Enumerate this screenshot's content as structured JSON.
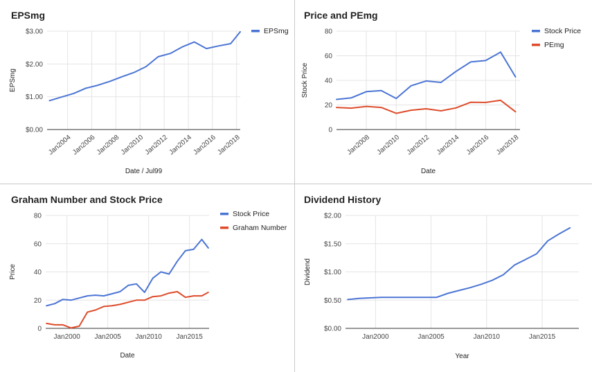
{
  "colors": {
    "blue": "#4a74d4",
    "red": "#dd4b2a",
    "grid": "#e4e4e4"
  },
  "chart_data": [
    {
      "type": "line",
      "title": "EPSmg",
      "xlabel": "Date / Jul99",
      "ylabel": "EPSmg",
      "xaxis": "date",
      "xlim": [
        2002.3,
        2018.3
      ],
      "ylim": [
        0,
        3
      ],
      "yticks": [
        0,
        1,
        2,
        3
      ],
      "yticklabels": [
        "$0.00",
        "$1.00",
        "$2.00",
        "$3.00"
      ],
      "xticks": [
        2004,
        2006,
        2008,
        2010,
        2012,
        2014,
        2016,
        2018
      ],
      "xticklabels": [
        "Jan2004",
        "Jan2006",
        "Jan2008",
        "Jan2010",
        "Jan2012",
        "Jan2014",
        "Jan2016",
        "Jan2018"
      ],
      "xticks_rotated": true,
      "grid": true,
      "legend": "top-right",
      "series": [
        {
          "name": "EPSmg",
          "color": "#4a74d4",
          "x": [
            2002.5,
            2003.5,
            2004.5,
            2005.5,
            2006.5,
            2007.5,
            2008.5,
            2009.5,
            2010.5,
            2011.5,
            2012.5,
            2013.5,
            2014.5,
            2015.5,
            2016.5,
            2017.5,
            2018.3
          ],
          "y": [
            0.88,
            0.99,
            1.1,
            1.26,
            1.35,
            1.47,
            1.61,
            1.74,
            1.92,
            2.22,
            2.32,
            2.52,
            2.67,
            2.47,
            2.55,
            2.62,
            2.98
          ]
        }
      ]
    },
    {
      "type": "line",
      "title": "Price and PEmg",
      "xlabel": "Date",
      "ylabel": "Stock Price",
      "xaxis": "date",
      "xlim": [
        2006.0,
        2018.3
      ],
      "ylim": [
        0,
        80
      ],
      "yticks": [
        0,
        20,
        40,
        60,
        80
      ],
      "yticklabels": [
        "0",
        "20",
        "40",
        "60",
        "80"
      ],
      "xticks": [
        2008,
        2010,
        2012,
        2014,
        2016,
        2018
      ],
      "xticklabels": [
        "Jan2008",
        "Jan2010",
        "Jan2012",
        "Jan2014",
        "Jan2016",
        "Jan2018"
      ],
      "xticks_rotated": true,
      "grid": true,
      "legend": "top-right",
      "series": [
        {
          "name": "Stock Price",
          "color": "#4a74d4",
          "x": [
            2006.0,
            2007.0,
            2008.0,
            2009.0,
            2010.0,
            2011.0,
            2012.0,
            2013.0,
            2014.0,
            2015.0,
            2016.0,
            2017.0,
            2018.0
          ],
          "y": [
            24.5,
            25.8,
            30.8,
            31.7,
            25.3,
            35.6,
            39.5,
            38.3,
            47.2,
            55.0,
            56.1,
            63.0,
            42.8
          ]
        },
        {
          "name": "PEmg",
          "color": "#dd4b2a",
          "x": [
            2006.0,
            2007.0,
            2008.0,
            2009.0,
            2010.0,
            2011.0,
            2012.0,
            2013.0,
            2014.0,
            2015.0,
            2016.0,
            2017.0,
            2018.0
          ],
          "y": [
            18.0,
            17.4,
            18.8,
            18.0,
            13.2,
            15.7,
            16.9,
            15.2,
            17.6,
            22.2,
            22.0,
            23.8,
            14.5
          ]
        }
      ]
    },
    {
      "type": "line",
      "title": "Graham Number and Stock Price",
      "xlabel": "Date",
      "ylabel": "Price",
      "xaxis": "date",
      "xlim": [
        1997.4,
        2017.4
      ],
      "ylim": [
        0,
        80
      ],
      "yticks": [
        0,
        20,
        40,
        60,
        80
      ],
      "yticklabels": [
        "0",
        "20",
        "40",
        "60",
        "80"
      ],
      "xticks": [
        2000,
        2005,
        2010,
        2015
      ],
      "xticklabels": [
        "Jan2000",
        "Jan2005",
        "Jan2010",
        "Jan2015"
      ],
      "xticks_rotated": false,
      "grid": true,
      "legend": "top-right",
      "series": [
        {
          "name": "Stock Price",
          "color": "#4a74d4",
          "x": [
            1997.5,
            1998.5,
            1999.5,
            2000.5,
            2001.5,
            2002.5,
            2003.5,
            2004.5,
            2005.5,
            2006.5,
            2007.5,
            2008.5,
            2009.5,
            2010.5,
            2011.5,
            2012.5,
            2013.5,
            2014.5,
            2015.5,
            2016.5,
            2017.3
          ],
          "y": [
            16.0,
            17.5,
            20.5,
            20.0,
            21.5,
            23.0,
            23.5,
            23.0,
            24.5,
            26.0,
            30.5,
            31.5,
            25.5,
            35.5,
            40.0,
            38.5,
            47.5,
            55.0,
            56.0,
            63.0,
            57.0
          ]
        },
        {
          "name": "Graham Number",
          "color": "#dd4b2a",
          "x": [
            1997.5,
            1998.5,
            1999.5,
            2000.5,
            2001.5,
            2002.5,
            2003.5,
            2004.5,
            2005.5,
            2006.5,
            2007.5,
            2008.5,
            2009.5,
            2010.5,
            2011.5,
            2012.5,
            2013.5,
            2014.5,
            2015.5,
            2016.5,
            2017.3
          ],
          "y": [
            3.5,
            2.5,
            2.5,
            0.3,
            1.5,
            11.5,
            13.0,
            15.5,
            16.0,
            17.0,
            18.5,
            20.0,
            20.0,
            22.5,
            23.0,
            25.0,
            26.0,
            22.0,
            23.0,
            23.0,
            25.5
          ]
        }
      ]
    },
    {
      "type": "line",
      "title": "Dividend History",
      "xlabel": "Year",
      "ylabel": "Dividend",
      "xaxis": "date",
      "xlim": [
        1997.3,
        2018.3
      ],
      "ylim": [
        0,
        2
      ],
      "yticks": [
        0,
        0.5,
        1,
        1.5,
        2
      ],
      "yticklabels": [
        "$0.00",
        "$0.50",
        "$1.00",
        "$1.50",
        "$2.00"
      ],
      "xticks": [
        2000,
        2005,
        2010,
        2015
      ],
      "xticklabels": [
        "Jan2000",
        "Jan2005",
        "Jan2010",
        "Jan2015"
      ],
      "xticks_rotated": false,
      "grid": true,
      "legend": "none",
      "series": [
        {
          "name": "",
          "color": "#4a74d4",
          "x": [
            1997.5,
            1998.5,
            1999.5,
            2000.5,
            2001.5,
            2002.5,
            2003.5,
            2004.5,
            2005.5,
            2006.5,
            2007.5,
            2008.5,
            2009.5,
            2010.5,
            2011.5,
            2012.5,
            2013.5,
            2014.5,
            2015.5,
            2016.5,
            2017.5
          ],
          "y": [
            0.51,
            0.53,
            0.54,
            0.55,
            0.55,
            0.55,
            0.55,
            0.55,
            0.55,
            0.62,
            0.67,
            0.72,
            0.78,
            0.85,
            0.95,
            1.12,
            1.22,
            1.32,
            1.55,
            1.67,
            1.78
          ]
        }
      ]
    }
  ]
}
